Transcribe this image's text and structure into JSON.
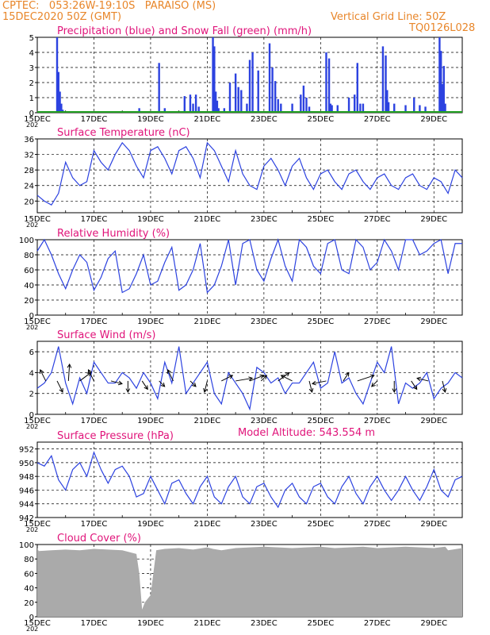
{
  "header": {
    "line1": "CPTEC:   053:26W-19:10S   PARAISO (MS)",
    "line2": "15DEC2020 50Z (GMT)",
    "grid_note": "Vertical Grid Line: 50Z",
    "model_id": "TQ0126L028",
    "model_altitude": "Model Altitude: 543.554 m"
  },
  "colors": {
    "header": "#e8862a",
    "title": "#e0147a",
    "line": "#2c42e0",
    "snow": "#22a022",
    "cloud": "#aaaaaa"
  },
  "x_tick_labels": [
    "15DEC",
    "17DEC",
    "19DEC",
    "21DEC",
    "23DEC",
    "25DEC",
    "27DEC",
    "29DEC"
  ],
  "chart_data": [
    {
      "type": "bar",
      "title": "Precipitation (blue) and Snow Fall (green) (mm/h)",
      "x_days": [
        0.7,
        0.75,
        0.8,
        0.85,
        0.9,
        1.0,
        1.1,
        1.8,
        2.3,
        3.1,
        3.6,
        4.3,
        4.5,
        5.0,
        5.2,
        5.4,
        5.5,
        5.6,
        5.7,
        6.2,
        6.25,
        6.3,
        6.35,
        6.4,
        6.6,
        6.8,
        7.0,
        7.1,
        7.2,
        7.4,
        7.5,
        7.6,
        7.8,
        8.2,
        8.3,
        8.4,
        8.5,
        8.6,
        9.0,
        9.3,
        9.4,
        9.5,
        9.6,
        10.2,
        10.3,
        10.35,
        10.4,
        10.6,
        11.0,
        11.2,
        11.3,
        11.4,
        11.5,
        12.2,
        12.3,
        12.35,
        12.4,
        12.6,
        13.0,
        13.3,
        13.5,
        13.7,
        14.2,
        14.25,
        14.3,
        14.35,
        14.4
      ],
      "precipitation": [
        5.0,
        2.7,
        1.4,
        0.6,
        0.2,
        0.1,
        0.1,
        0.05,
        0.05,
        0.1,
        0.3,
        3.3,
        0.3,
        0.1,
        1.1,
        1.2,
        0.6,
        1.2,
        0.4,
        5.0,
        4.4,
        1.4,
        0.8,
        0.3,
        0.3,
        2.0,
        2.6,
        1.7,
        1.5,
        0.6,
        3.5,
        4.0,
        2.8,
        4.6,
        3.0,
        2.1,
        0.9,
        0.6,
        0.6,
        1.2,
        1.8,
        1.0,
        0.4,
        4.0,
        3.6,
        0.6,
        0.5,
        0.5,
        1.0,
        1.2,
        3.3,
        0.6,
        0.6,
        4.4,
        3.8,
        1.5,
        0.7,
        0.6,
        0.5,
        1.0,
        0.5,
        0.4,
        5.0,
        4.1,
        1.9,
        3.1,
        0.6
      ],
      "snowfall_all_zero": 0,
      "ylim": [
        0,
        5
      ],
      "yticks": [
        0,
        1,
        2,
        3,
        4,
        5
      ]
    },
    {
      "type": "line",
      "title": "Surface Temperature (nC)",
      "x_days": [
        0,
        0.25,
        0.5,
        0.75,
        1,
        1.25,
        1.5,
        1.75,
        2,
        2.25,
        2.5,
        2.75,
        3,
        3.25,
        3.5,
        3.75,
        4,
        4.25,
        4.5,
        4.75,
        5,
        5.25,
        5.5,
        5.75,
        6,
        6.25,
        6.5,
        6.75,
        7,
        7.25,
        7.5,
        7.75,
        8,
        8.25,
        8.5,
        8.75,
        9,
        9.25,
        9.5,
        9.75,
        10,
        10.25,
        10.5,
        10.75,
        11,
        11.25,
        11.5,
        11.75,
        12,
        12.25,
        12.5,
        12.75,
        13,
        13.25,
        13.5,
        13.75,
        14,
        14.25,
        14.5,
        14.75,
        15
      ],
      "values": [
        21.5,
        20,
        19,
        22,
        30,
        26,
        24,
        25,
        33,
        30,
        28,
        32,
        35,
        33,
        29,
        26,
        33,
        34,
        31,
        27,
        33,
        34,
        31,
        26,
        35,
        33,
        29,
        25,
        33,
        27,
        24,
        23,
        29,
        31,
        28,
        24,
        29,
        31,
        26,
        23,
        27,
        28,
        25,
        23,
        27,
        28,
        25,
        23,
        26,
        27,
        24,
        23,
        26,
        27,
        24,
        23,
        26,
        25,
        22,
        28,
        26
      ],
      "ylim": [
        17,
        36
      ],
      "yticks": [
        20,
        24,
        28,
        32,
        36
      ]
    },
    {
      "type": "line",
      "title": "Relative Humidity (%)",
      "x_days": [
        0,
        0.25,
        0.5,
        0.75,
        1,
        1.25,
        1.5,
        1.75,
        2,
        2.25,
        2.5,
        2.75,
        3,
        3.25,
        3.5,
        3.75,
        4,
        4.25,
        4.5,
        4.75,
        5,
        5.25,
        5.5,
        5.75,
        6,
        6.25,
        6.5,
        6.75,
        7,
        7.25,
        7.5,
        7.75,
        8,
        8.25,
        8.5,
        8.75,
        9,
        9.25,
        9.5,
        9.75,
        10,
        10.25,
        10.5,
        10.75,
        11,
        11.25,
        11.5,
        11.75,
        12,
        12.25,
        12.5,
        12.75,
        13,
        13.25,
        13.5,
        13.75,
        14,
        14.25,
        14.5,
        14.75,
        15
      ],
      "values": [
        85,
        100,
        80,
        55,
        35,
        60,
        80,
        70,
        33,
        50,
        75,
        85,
        30,
        35,
        55,
        80,
        40,
        45,
        70,
        90,
        33,
        40,
        60,
        95,
        30,
        40,
        65,
        100,
        40,
        95,
        100,
        60,
        45,
        75,
        100,
        65,
        45,
        100,
        90,
        65,
        55,
        95,
        100,
        60,
        55,
        100,
        90,
        60,
        70,
        100,
        85,
        60,
        100,
        100,
        80,
        85,
        95,
        100,
        55,
        95,
        95
      ],
      "ylim": [
        0,
        100
      ],
      "yticks": [
        0,
        20,
        40,
        60,
        80,
        100
      ]
    },
    {
      "type": "line",
      "title": "Surface Wind (m/s)",
      "x_days": [
        0,
        0.25,
        0.5,
        0.75,
        1,
        1.25,
        1.5,
        1.75,
        2,
        2.25,
        2.5,
        2.75,
        3,
        3.25,
        3.5,
        3.75,
        4,
        4.25,
        4.5,
        4.75,
        5,
        5.25,
        5.5,
        5.75,
        6,
        6.25,
        6.5,
        6.75,
        7,
        7.25,
        7.5,
        7.75,
        8,
        8.25,
        8.5,
        8.75,
        9,
        9.25,
        9.5,
        9.75,
        10,
        10.25,
        10.5,
        10.75,
        11,
        11.25,
        11.5,
        11.75,
        12,
        12.25,
        12.5,
        12.75,
        13,
        13.25,
        13.5,
        13.75,
        14,
        14.25,
        14.5,
        14.75,
        15
      ],
      "values": [
        2.5,
        3,
        4,
        6.5,
        3,
        1,
        3.5,
        2,
        5,
        4,
        3,
        3,
        4,
        3.5,
        2.5,
        4,
        3,
        1.5,
        5,
        3,
        6.5,
        2,
        3,
        4,
        5,
        2,
        1,
        4,
        3,
        2,
        0.5,
        4.5,
        4,
        3,
        3.5,
        2,
        3,
        3,
        4,
        5,
        2.5,
        3,
        6,
        3,
        3.5,
        2,
        1,
        3,
        5,
        4,
        6.5,
        1,
        3,
        2.5,
        3,
        4,
        1.5,
        2.5,
        3,
        4,
        3.5
      ],
      "ylim": [
        0,
        7
      ],
      "yticks": [
        0,
        2,
        4,
        6
      ]
    },
    {
      "type": "line",
      "title": "Surface Pressure (hPa)",
      "x_days": [
        0,
        0.25,
        0.5,
        0.75,
        1,
        1.25,
        1.5,
        1.75,
        2,
        2.25,
        2.5,
        2.75,
        3,
        3.25,
        3.5,
        3.75,
        4,
        4.25,
        4.5,
        4.75,
        5,
        5.25,
        5.5,
        5.75,
        6,
        6.25,
        6.5,
        6.75,
        7,
        7.25,
        7.5,
        7.75,
        8,
        8.25,
        8.5,
        8.75,
        9,
        9.25,
        9.5,
        9.75,
        10,
        10.25,
        10.5,
        10.75,
        11,
        11.25,
        11.5,
        11.75,
        12,
        12.25,
        12.5,
        12.75,
        13,
        13.25,
        13.5,
        13.75,
        14,
        14.25,
        14.5,
        14.75,
        15
      ],
      "values": [
        950,
        949.5,
        951,
        947.5,
        946,
        949,
        950,
        948,
        951.5,
        949,
        947,
        949,
        949.5,
        948,
        945,
        945.5,
        948,
        946,
        944,
        947,
        947.5,
        945.5,
        944,
        946.5,
        948,
        945,
        944,
        946.5,
        948,
        945,
        944,
        946.5,
        947,
        945,
        943.5,
        946,
        947,
        945,
        944,
        946.5,
        947,
        945,
        944,
        946.5,
        948,
        945.5,
        944,
        946.5,
        948,
        946,
        944.5,
        946,
        948,
        946,
        944.5,
        946.5,
        949,
        946,
        945,
        947.5,
        948
      ],
      "ylim": [
        942,
        953
      ],
      "yticks": [
        942,
        944,
        946,
        948,
        950,
        952
      ]
    },
    {
      "type": "area",
      "title": "Cloud Cover (%)",
      "x_days": [
        0,
        0.05,
        0.5,
        1,
        1.5,
        2,
        2.5,
        3,
        3.5,
        3.6,
        3.7,
        3.8,
        4.0,
        4.2,
        4.5,
        5,
        5.5,
        6,
        6.2,
        6.5,
        7,
        7.5,
        8,
        8.5,
        9,
        9.5,
        10,
        10.5,
        11,
        11.5,
        12,
        12.5,
        13,
        13.5,
        14,
        14.2,
        14.4,
        14.5,
        15
      ],
      "values": [
        95,
        91,
        92,
        93,
        92,
        94,
        93,
        92,
        87,
        60,
        10,
        20,
        30,
        92,
        94,
        95,
        93,
        96,
        94,
        92,
        95,
        96,
        97,
        96,
        95,
        96,
        97,
        95,
        96,
        97,
        95,
        96,
        97,
        96,
        95,
        96,
        97,
        92,
        95
      ],
      "ylim": [
        0,
        100
      ],
      "yticks": [
        0,
        20,
        40,
        60,
        80,
        100
      ]
    }
  ],
  "wind_arrows": {
    "x_days": [
      0.3,
      0.7,
      1.1,
      1.5,
      2.0,
      2.6,
      3.2,
      3.7,
      4.3,
      4.8,
      5.4,
      6.0,
      6.5,
      7.0,
      7.5,
      7.9,
      8.5,
      9.0,
      9.6,
      10.2,
      10.8,
      11.3,
      12.0,
      12.6,
      13.2,
      13.8,
      14.3
    ],
    "u": [
      -1,
      1,
      0.2,
      2,
      -1,
      2,
      0,
      1,
      1,
      -1,
      1,
      -0.5,
      2,
      3,
      2.5,
      1,
      2,
      -2,
      0.5,
      -2.5,
      1,
      3,
      -1,
      0,
      1,
      -2,
      0.5
    ],
    "v": [
      2,
      -2,
      3,
      1.5,
      2,
      -0.5,
      -2,
      -1.5,
      -1,
      2,
      -1,
      -2,
      1,
      0.5,
      1,
      1,
      1.5,
      1,
      -2,
      -0.5,
      1.5,
      1,
      -1,
      -2,
      -1.5,
      0.5,
      -2
    ]
  },
  "panel_titles": [
    "Precipitation (blue) and Snow Fall (green) (mm/h)",
    "Surface Temperature (nC)",
    "Relative Humidity (%)",
    "Surface Wind (m/s)",
    "Surface Pressure (hPa)",
    "Cloud Cover (%)"
  ],
  "year_tag": "202"
}
